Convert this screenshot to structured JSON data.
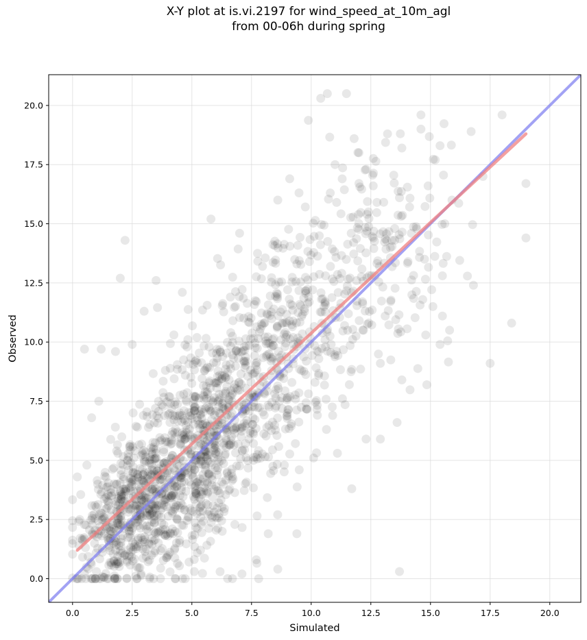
{
  "chart_data": {
    "type": "scatter",
    "title_lines": [
      "X-Y plot at is.vi.2197 for wind_speed_at_10m_agl",
      "from 00-06h during spring"
    ],
    "xlabel": "Simulated",
    "ylabel": "Observed",
    "xlim": [
      -1.0,
      21.3
    ],
    "ylim": [
      -1.0,
      21.3
    ],
    "x_ticks": [
      "0.0",
      "2.5",
      "5.0",
      "7.5",
      "10.0",
      "12.5",
      "15.0",
      "17.5",
      "20.0"
    ],
    "y_ticks": [
      "0.0",
      "2.5",
      "5.0",
      "7.5",
      "10.0",
      "12.5",
      "15.0",
      "17.5",
      "20.0"
    ],
    "x_tick_values": [
      0,
      2.5,
      5,
      7.5,
      10,
      12.5,
      15,
      17.5,
      20
    ],
    "y_tick_values": [
      0,
      2.5,
      5,
      7.5,
      10,
      12.5,
      15,
      17.5,
      20
    ],
    "grid": true,
    "colors": {
      "points": "#000000",
      "fit_line": "#f08080",
      "identity_line": "#7a7af0"
    },
    "fit_line": {
      "x": [
        0.2,
        19.0
      ],
      "y": [
        1.2,
        18.8
      ]
    },
    "identity_line": {
      "x": [
        -1.0,
        21.3
      ],
      "y": [
        -1.0,
        21.3
      ]
    },
    "points_cloud": {
      "approx_count": 1800,
      "clusters": [
        {
          "x_mean": 2.5,
          "y_mean": 2.8,
          "x_sd": 1.1,
          "y_sd": 1.5,
          "n": 520
        },
        {
          "x_mean": 5.3,
          "y_mean": 5.6,
          "x_sd": 1.3,
          "y_sd": 2.2,
          "n": 640
        },
        {
          "x_mean": 8.4,
          "y_mean": 9.3,
          "x_sd": 1.7,
          "y_sd": 2.4,
          "n": 440
        },
        {
          "x_mean": 12.5,
          "y_mean": 13.5,
          "x_sd": 1.8,
          "y_sd": 2.6,
          "n": 200
        }
      ]
    },
    "points": [
      {
        "x": 10.4,
        "y": 20.3
      },
      {
        "x": 14.6,
        "y": 19.6
      },
      {
        "x": 18.0,
        "y": 19.6
      },
      {
        "x": 14.6,
        "y": 19.0
      },
      {
        "x": 13.2,
        "y": 18.8
      },
      {
        "x": 11.8,
        "y": 18.6
      },
      {
        "x": 15.4,
        "y": 18.3
      },
      {
        "x": 12.0,
        "y": 18.0
      },
      {
        "x": 13.8,
        "y": 18.2
      },
      {
        "x": 15.2,
        "y": 17.7
      },
      {
        "x": 11.0,
        "y": 17.5
      },
      {
        "x": 17.2,
        "y": 17.0
      },
      {
        "x": 19.0,
        "y": 16.7
      },
      {
        "x": 14.9,
        "y": 16.6
      },
      {
        "x": 9.1,
        "y": 16.9
      },
      {
        "x": 8.6,
        "y": 16.0
      },
      {
        "x": 5.8,
        "y": 15.2
      },
      {
        "x": 7.0,
        "y": 14.6
      },
      {
        "x": 2.2,
        "y": 14.3
      },
      {
        "x": 19.0,
        "y": 14.4
      },
      {
        "x": 13.7,
        "y": 16.1
      },
      {
        "x": 15.9,
        "y": 16.0
      },
      {
        "x": 15.6,
        "y": 15.0
      },
      {
        "x": 12.4,
        "y": 15.5
      },
      {
        "x": 16.8,
        "y": 12.4
      },
      {
        "x": 15.5,
        "y": 12.8
      },
      {
        "x": 15.5,
        "y": 11.1
      },
      {
        "x": 15.1,
        "y": 11.5
      },
      {
        "x": 18.4,
        "y": 10.8
      },
      {
        "x": 15.8,
        "y": 10.5
      },
      {
        "x": 15.4,
        "y": 9.9
      },
      {
        "x": 17.5,
        "y": 9.1
      },
      {
        "x": 14.8,
        "y": 10.3
      },
      {
        "x": 13.8,
        "y": 8.4
      },
      {
        "x": 13.6,
        "y": 6.6
      },
      {
        "x": 13.7,
        "y": 0.3
      },
      {
        "x": 12.3,
        "y": 5.9
      },
      {
        "x": 12.9,
        "y": 5.9
      },
      {
        "x": 11.7,
        "y": 3.8
      },
      {
        "x": 11.1,
        "y": 5.3
      },
      {
        "x": 10.1,
        "y": 5.1
      },
      {
        "x": 9.4,
        "y": 1.9
      },
      {
        "x": 8.2,
        "y": 1.9
      },
      {
        "x": 7.7,
        "y": 0.8
      },
      {
        "x": 7.8,
        "y": 0.0
      },
      {
        "x": 8.6,
        "y": 0.4
      },
      {
        "x": 7.1,
        "y": 0.2
      },
      {
        "x": 6.7,
        "y": 0.0
      },
      {
        "x": 0.5,
        "y": 9.7
      },
      {
        "x": 2.0,
        "y": 12.7
      },
      {
        "x": 3.5,
        "y": 12.6
      },
      {
        "x": 3.0,
        "y": 11.3
      },
      {
        "x": 4.6,
        "y": 12.1
      },
      {
        "x": 1.8,
        "y": 9.6
      },
      {
        "x": 1.2,
        "y": 9.7
      },
      {
        "x": 2.5,
        "y": 9.9
      },
      {
        "x": 0.2,
        "y": 0.0
      },
      {
        "x": 0.5,
        "y": 0.2
      },
      {
        "x": 2.7,
        "y": 0.0
      },
      {
        "x": 3.4,
        "y": 0.0
      },
      {
        "x": 4.3,
        "y": 0.0
      },
      {
        "x": 5.1,
        "y": 0.3
      },
      {
        "x": 1.0,
        "y": 0.3
      },
      {
        "x": 0.3,
        "y": 2.5
      },
      {
        "x": 0.6,
        "y": 4.8
      },
      {
        "x": 0.2,
        "y": 4.3
      },
      {
        "x": 0.8,
        "y": 6.8
      },
      {
        "x": 1.1,
        "y": 7.5
      },
      {
        "x": 12.6,
        "y": 16.6
      },
      {
        "x": 12.3,
        "y": 17.3
      },
      {
        "x": 10.8,
        "y": 16.3
      },
      {
        "x": 9.4,
        "y": 13.3
      },
      {
        "x": 10.6,
        "y": 12.8
      },
      {
        "x": 12.6,
        "y": 14.4
      },
      {
        "x": 13.5,
        "y": 14.8
      },
      {
        "x": 14.2,
        "y": 14.6
      },
      {
        "x": 13.1,
        "y": 11.1
      },
      {
        "x": 12.9,
        "y": 9.1
      },
      {
        "x": 11.4,
        "y": 10.7
      },
      {
        "x": 10.6,
        "y": 9.8
      },
      {
        "x": 11.6,
        "y": 8.2
      },
      {
        "x": 10.9,
        "y": 6.9
      },
      {
        "x": 9.0,
        "y": 7.0
      },
      {
        "x": 9.5,
        "y": 4.6
      }
    ]
  }
}
